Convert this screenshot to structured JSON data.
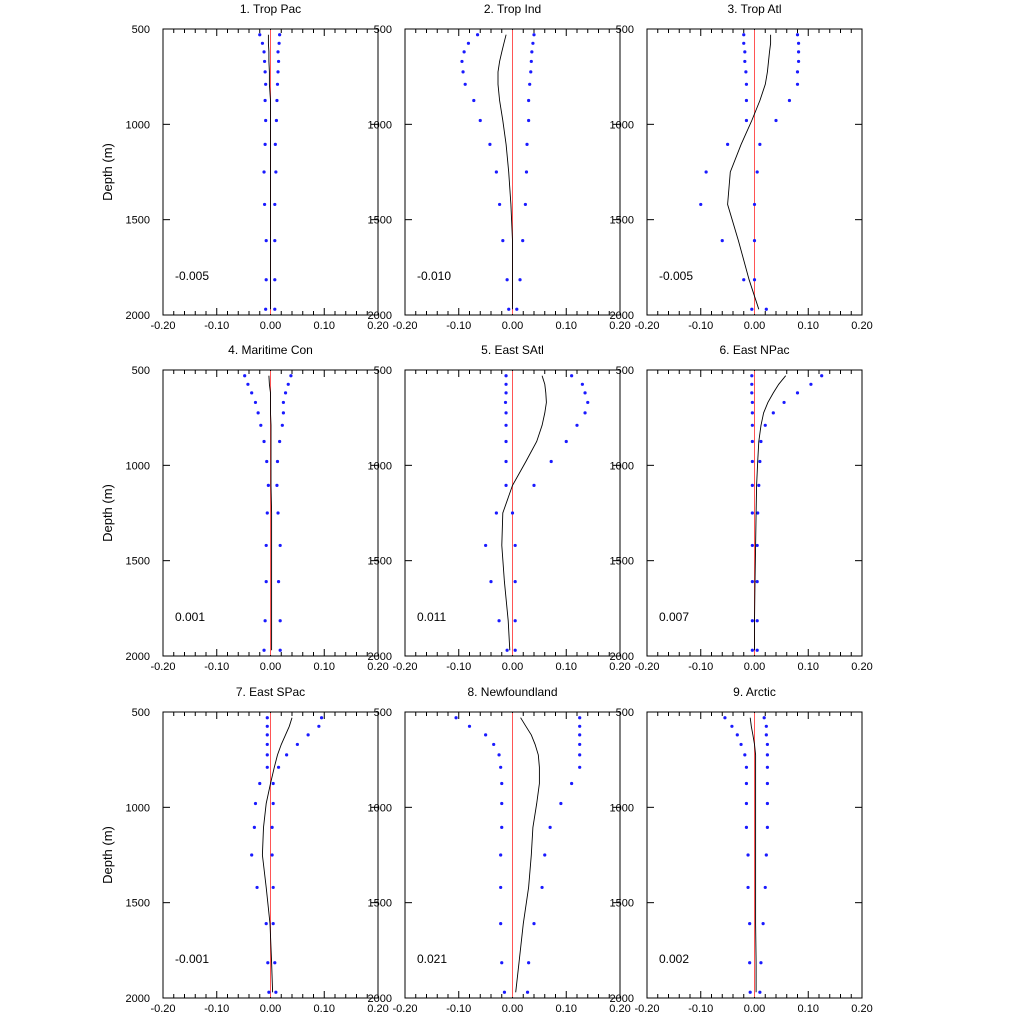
{
  "figure": {
    "ylabel": "Depth (m)",
    "xticks": [
      "-0.20",
      "-0.10",
      "0.00",
      "0.10",
      "0.20"
    ],
    "yticks": [
      "500",
      "1000",
      "1500",
      "2000"
    ],
    "colors": {
      "mean_line": "#000000",
      "spread_dots": "#1a1aff",
      "zero_line": "#ff5555",
      "axes": "#000000"
    }
  },
  "chart_data": [
    {
      "type": "line",
      "title": "1. Trop Pac",
      "annotation": "-0.005",
      "xlim": [
        -0.2,
        0.2
      ],
      "ylim": [
        500,
        2000
      ],
      "depth": [
        530,
        575,
        620,
        670,
        725,
        790,
        875,
        980,
        1105,
        1250,
        1420,
        1610,
        1815,
        1970
      ],
      "mean": [
        -0.004,
        -0.004,
        -0.003,
        -0.003,
        -0.002,
        -0.002,
        0.0,
        0.0,
        0.0,
        0.0,
        0.0,
        0.0,
        0.0,
        0.0
      ],
      "lower": [
        -0.02,
        -0.015,
        -0.012,
        -0.011,
        -0.01,
        -0.009,
        -0.01,
        -0.009,
        -0.01,
        -0.012,
        -0.011,
        -0.008,
        -0.008,
        -0.009
      ],
      "upper": [
        0.017,
        0.016,
        0.014,
        0.015,
        0.014,
        0.013,
        0.012,
        0.011,
        0.009,
        0.01,
        0.008,
        0.008,
        0.008,
        0.008
      ]
    },
    {
      "type": "line",
      "title": "2. Trop Ind",
      "annotation": "-0.010",
      "xlim": [
        -0.2,
        0.2
      ],
      "ylim": [
        500,
        2000
      ],
      "depth": [
        530,
        575,
        620,
        670,
        725,
        790,
        875,
        980,
        1105,
        1250,
        1420,
        1610,
        1815,
        1970
      ],
      "mean": [
        -0.012,
        -0.016,
        -0.02,
        -0.024,
        -0.027,
        -0.027,
        -0.024,
        -0.018,
        -0.012,
        -0.007,
        -0.003,
        0.0,
        0.0,
        0.0
      ],
      "lower": [
        -0.065,
        -0.082,
        -0.09,
        -0.094,
        -0.092,
        -0.088,
        -0.072,
        -0.06,
        -0.042,
        -0.03,
        -0.024,
        -0.018,
        -0.01,
        -0.007
      ],
      "upper": [
        0.04,
        0.038,
        0.036,
        0.035,
        0.034,
        0.032,
        0.03,
        0.03,
        0.027,
        0.026,
        0.024,
        0.019,
        0.014,
        0.008
      ]
    },
    {
      "type": "line",
      "title": "3. Trop Atl",
      "annotation": "-0.005",
      "xlim": [
        -0.2,
        0.2
      ],
      "ylim": [
        500,
        2000
      ],
      "depth": [
        530,
        575,
        620,
        670,
        725,
        790,
        875,
        980,
        1105,
        1250,
        1420,
        1610,
        1815,
        1970
      ],
      "mean": [
        0.03,
        0.03,
        0.028,
        0.026,
        0.024,
        0.02,
        0.01,
        -0.005,
        -0.025,
        -0.045,
        -0.05,
        -0.03,
        -0.01,
        0.008
      ],
      "lower": [
        -0.02,
        -0.02,
        -0.018,
        -0.018,
        -0.016,
        -0.015,
        -0.015,
        -0.015,
        -0.05,
        -0.09,
        -0.1,
        -0.06,
        -0.02,
        -0.005
      ],
      "upper": [
        0.08,
        0.082,
        0.082,
        0.082,
        0.08,
        0.08,
        0.065,
        0.04,
        0.01,
        0.005,
        0.0,
        0.0,
        0.0,
        0.022
      ]
    },
    {
      "type": "line",
      "title": "4. Maritime Con",
      "annotation": "0.001",
      "xlim": [
        -0.2,
        0.2
      ],
      "ylim": [
        500,
        2000
      ],
      "depth": [
        530,
        575,
        620,
        670,
        725,
        790,
        875,
        980,
        1105,
        1250,
        1420,
        1610,
        1815,
        1970
      ],
      "mean": [
        -0.003,
        -0.002,
        0.0,
        0.0,
        0.0,
        0.001,
        0.001,
        0.001,
        0.001,
        0.002,
        0.002,
        0.002,
        0.002,
        0.002
      ],
      "lower": [
        -0.048,
        -0.042,
        -0.035,
        -0.028,
        -0.023,
        -0.018,
        -0.012,
        -0.007,
        -0.004,
        -0.006,
        -0.008,
        -0.008,
        -0.01,
        -0.012
      ],
      "upper": [
        0.038,
        0.033,
        0.028,
        0.024,
        0.024,
        0.022,
        0.017,
        0.013,
        0.012,
        0.014,
        0.018,
        0.015,
        0.018,
        0.018
      ]
    },
    {
      "type": "line",
      "title": "5. East SAtl",
      "annotation": "0.011",
      "xlim": [
        -0.2,
        0.2
      ],
      "ylim": [
        500,
        2000
      ],
      "depth": [
        530,
        575,
        620,
        670,
        725,
        790,
        875,
        980,
        1105,
        1250,
        1420,
        1610,
        1815,
        1970
      ],
      "mean": [
        0.055,
        0.06,
        0.062,
        0.063,
        0.06,
        0.055,
        0.045,
        0.025,
        0.0,
        -0.018,
        -0.02,
        -0.015,
        -0.008,
        -0.005
      ],
      "lower": [
        -0.012,
        -0.012,
        -0.012,
        -0.013,
        -0.012,
        -0.012,
        -0.012,
        -0.012,
        -0.012,
        -0.03,
        -0.05,
        -0.04,
        -0.025,
        -0.01
      ],
      "upper": [
        0.11,
        0.13,
        0.135,
        0.14,
        0.135,
        0.12,
        0.1,
        0.072,
        0.04,
        0.0,
        0.005,
        0.005,
        0.005,
        0.005
      ]
    },
    {
      "type": "line",
      "title": "6. East NPac",
      "annotation": "0.007",
      "xlim": [
        -0.2,
        0.2
      ],
      "ylim": [
        500,
        2000
      ],
      "depth": [
        530,
        575,
        620,
        670,
        725,
        790,
        875,
        980,
        1105,
        1250,
        1420,
        1610,
        1815,
        1970
      ],
      "mean": [
        0.058,
        0.045,
        0.035,
        0.025,
        0.017,
        0.012,
        0.008,
        0.006,
        0.004,
        0.003,
        0.002,
        0.001,
        0.0,
        0.0
      ],
      "lower": [
        -0.005,
        -0.005,
        -0.005,
        -0.004,
        -0.004,
        -0.004,
        -0.004,
        -0.004,
        -0.004,
        -0.004,
        -0.004,
        -0.004,
        -0.004,
        -0.004
      ],
      "upper": [
        0.125,
        0.105,
        0.08,
        0.055,
        0.035,
        0.02,
        0.012,
        0.01,
        0.008,
        0.006,
        0.005,
        0.005,
        0.005,
        0.005
      ]
    },
    {
      "type": "line",
      "title": "7. East SPac",
      "annotation": "-0.001",
      "xlim": [
        -0.2,
        0.2
      ],
      "ylim": [
        500,
        2000
      ],
      "depth": [
        530,
        575,
        620,
        670,
        725,
        790,
        875,
        980,
        1105,
        1250,
        1420,
        1610,
        1815,
        1970
      ],
      "mean": [
        0.04,
        0.035,
        0.028,
        0.02,
        0.013,
        0.007,
        0.0,
        -0.008,
        -0.013,
        -0.015,
        -0.008,
        -0.001,
        0.002,
        0.004
      ],
      "lower": [
        -0.006,
        -0.006,
        -0.006,
        -0.006,
        -0.006,
        -0.006,
        -0.02,
        -0.028,
        -0.03,
        -0.035,
        -0.025,
        -0.008,
        -0.005,
        -0.003
      ],
      "upper": [
        0.095,
        0.09,
        0.07,
        0.05,
        0.03,
        0.015,
        0.005,
        0.005,
        0.003,
        0.003,
        0.005,
        0.005,
        0.008,
        0.01
      ]
    },
    {
      "type": "line",
      "title": "8. Newfoundland",
      "annotation": "0.021",
      "xlim": [
        -0.2,
        0.2
      ],
      "ylim": [
        500,
        2000
      ],
      "depth": [
        530,
        575,
        620,
        670,
        725,
        790,
        875,
        980,
        1105,
        1250,
        1420,
        1610,
        1815,
        1970
      ],
      "mean": [
        0.015,
        0.025,
        0.035,
        0.042,
        0.048,
        0.05,
        0.05,
        0.045,
        0.038,
        0.035,
        0.03,
        0.02,
        0.012,
        0.006
      ],
      "lower": [
        -0.105,
        -0.08,
        -0.05,
        -0.035,
        -0.025,
        -0.022,
        -0.02,
        -0.02,
        -0.02,
        -0.022,
        -0.022,
        -0.022,
        -0.02,
        -0.015
      ],
      "upper": [
        0.125,
        0.125,
        0.125,
        0.125,
        0.125,
        0.125,
        0.11,
        0.09,
        0.07,
        0.06,
        0.055,
        0.04,
        0.03,
        0.028
      ]
    },
    {
      "type": "line",
      "title": "9. Arctic",
      "annotation": "0.002",
      "xlim": [
        -0.2,
        0.2
      ],
      "ylim": [
        500,
        2000
      ],
      "depth": [
        530,
        575,
        620,
        670,
        725,
        790,
        875,
        980,
        1105,
        1250,
        1420,
        1610,
        1815,
        1970
      ],
      "mean": [
        -0.008,
        -0.006,
        -0.003,
        0.0,
        0.002,
        0.002,
        0.002,
        0.002,
        0.002,
        0.002,
        0.002,
        0.002,
        0.003,
        0.003
      ],
      "lower": [
        -0.055,
        -0.042,
        -0.032,
        -0.025,
        -0.018,
        -0.015,
        -0.015,
        -0.015,
        -0.015,
        -0.012,
        -0.012,
        -0.009,
        -0.009,
        -0.008
      ],
      "upper": [
        0.018,
        0.022,
        0.022,
        0.024,
        0.024,
        0.024,
        0.024,
        0.024,
        0.024,
        0.022,
        0.02,
        0.016,
        0.012,
        0.01
      ]
    }
  ]
}
